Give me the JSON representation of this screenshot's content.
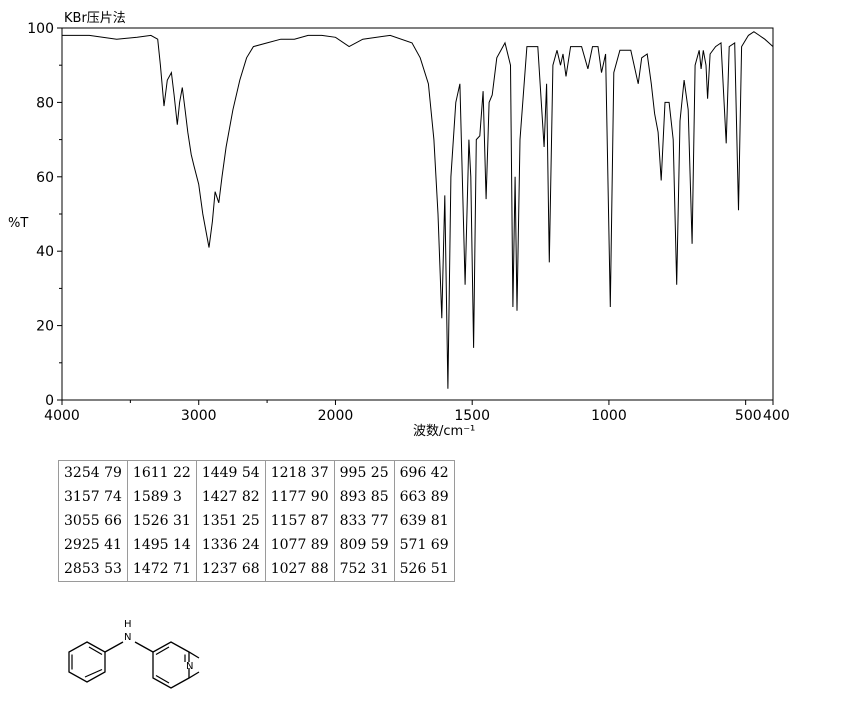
{
  "chart_data": {
    "type": "line",
    "title": "KBr压片法",
    "xlabel": "波数/cm⁻¹",
    "ylabel": "%T",
    "xlim": [
      4000,
      400
    ],
    "ylim": [
      0,
      100
    ],
    "x_ticks": [
      "4000",
      "3000",
      "2000",
      "1500",
      "1000",
      "500",
      "400"
    ],
    "y_ticks": [
      "0",
      "20",
      "40",
      "60",
      "80",
      "100"
    ],
    "series": [
      {
        "points": [
          [
            4000,
            98
          ],
          [
            3800,
            98
          ],
          [
            3600,
            97
          ],
          [
            3450,
            97.5
          ],
          [
            3350,
            98
          ],
          [
            3300,
            97
          ],
          [
            3280,
            90
          ],
          [
            3254,
            79
          ],
          [
            3230,
            86
          ],
          [
            3200,
            88
          ],
          [
            3180,
            82
          ],
          [
            3157,
            74
          ],
          [
            3140,
            80
          ],
          [
            3120,
            84
          ],
          [
            3100,
            78
          ],
          [
            3080,
            72
          ],
          [
            3055,
            66
          ],
          [
            3035,
            63
          ],
          [
            3000,
            58
          ],
          [
            2970,
            50
          ],
          [
            2925,
            41
          ],
          [
            2900,
            48
          ],
          [
            2880,
            56
          ],
          [
            2853,
            53
          ],
          [
            2830,
            60
          ],
          [
            2800,
            68
          ],
          [
            2750,
            78
          ],
          [
            2700,
            86
          ],
          [
            2650,
            92
          ],
          [
            2600,
            95
          ],
          [
            2500,
            96
          ],
          [
            2400,
            97
          ],
          [
            2300,
            97
          ],
          [
            2200,
            98
          ],
          [
            2100,
            98
          ],
          [
            2000,
            97.5
          ],
          [
            1950,
            95
          ],
          [
            1900,
            97
          ],
          [
            1800,
            98
          ],
          [
            1720,
            96
          ],
          [
            1690,
            92
          ],
          [
            1660,
            85
          ],
          [
            1640,
            70
          ],
          [
            1625,
            50
          ],
          [
            1611,
            22
          ],
          [
            1600,
            55
          ],
          [
            1589,
            3
          ],
          [
            1578,
            60
          ],
          [
            1560,
            80
          ],
          [
            1545,
            85
          ],
          [
            1526,
            31
          ],
          [
            1512,
            70
          ],
          [
            1505,
            60
          ],
          [
            1495,
            14
          ],
          [
            1485,
            70
          ],
          [
            1472,
            71
          ],
          [
            1460,
            83
          ],
          [
            1449,
            54
          ],
          [
            1438,
            80
          ],
          [
            1427,
            82
          ],
          [
            1410,
            92
          ],
          [
            1380,
            96
          ],
          [
            1360,
            90
          ],
          [
            1351,
            25
          ],
          [
            1343,
            60
          ],
          [
            1336,
            24
          ],
          [
            1325,
            70
          ],
          [
            1300,
            95
          ],
          [
            1260,
            95
          ],
          [
            1237,
            68
          ],
          [
            1228,
            85
          ],
          [
            1218,
            37
          ],
          [
            1205,
            90
          ],
          [
            1190,
            94
          ],
          [
            1177,
            90
          ],
          [
            1168,
            93
          ],
          [
            1157,
            87
          ],
          [
            1140,
            95
          ],
          [
            1100,
            95
          ],
          [
            1077,
            89
          ],
          [
            1060,
            95
          ],
          [
            1040,
            95
          ],
          [
            1027,
            88
          ],
          [
            1012,
            93
          ],
          [
            995,
            25
          ],
          [
            982,
            88
          ],
          [
            960,
            94
          ],
          [
            920,
            94
          ],
          [
            893,
            85
          ],
          [
            880,
            92
          ],
          [
            860,
            93
          ],
          [
            845,
            85
          ],
          [
            833,
            77
          ],
          [
            820,
            72
          ],
          [
            809,
            59
          ],
          [
            795,
            80
          ],
          [
            780,
            80
          ],
          [
            765,
            70
          ],
          [
            752,
            31
          ],
          [
            740,
            75
          ],
          [
            725,
            86
          ],
          [
            710,
            78
          ],
          [
            696,
            42
          ],
          [
            685,
            90
          ],
          [
            670,
            94
          ],
          [
            663,
            89
          ],
          [
            655,
            94
          ],
          [
            645,
            90
          ],
          [
            639,
            81
          ],
          [
            630,
            93
          ],
          [
            610,
            95
          ],
          [
            590,
            96
          ],
          [
            571,
            69
          ],
          [
            560,
            95
          ],
          [
            540,
            96
          ],
          [
            526,
            51
          ],
          [
            515,
            95
          ],
          [
            490,
            98
          ],
          [
            470,
            99
          ],
          [
            450,
            98
          ],
          [
            430,
            97
          ],
          [
            415,
            96
          ],
          [
            400,
            95
          ]
        ]
      }
    ],
    "peak_table": [
      [
        "3254 79",
        "3157 74",
        "3055 66",
        "2925 41",
        "2853 53"
      ],
      [
        "1611 22",
        "1589 3",
        "1526 31",
        "1495 14",
        "1472 71"
      ],
      [
        "1449 54",
        "1427 82",
        "1351 25",
        "1336 24",
        "1237 68"
      ],
      [
        "1218 37",
        "1177 90",
        "1157 87",
        "1077 89",
        "1027 88"
      ],
      [
        "995 25",
        "893 85",
        "833 77",
        "809 59",
        "752 31"
      ],
      [
        "696 42",
        "663 89",
        "639 81",
        "571 69",
        "526 51"
      ]
    ]
  },
  "structure": {
    "nh_label": "H\nN",
    "ring_n_label": "N"
  }
}
